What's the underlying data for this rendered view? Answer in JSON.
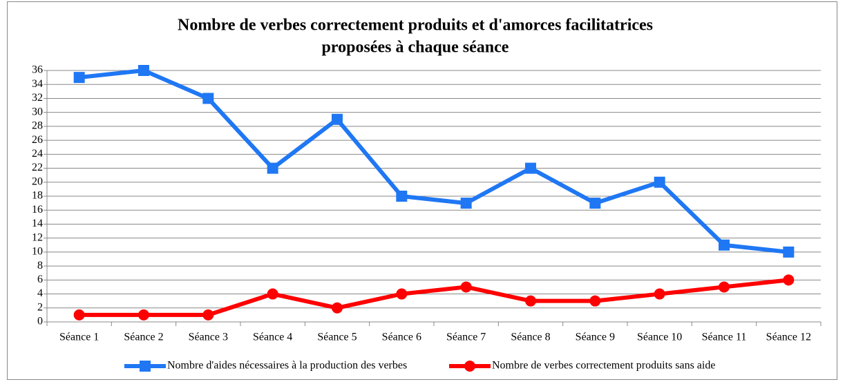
{
  "chart_data": {
    "type": "line",
    "title": [
      "Nombre de verbes correctement produits et d'amorces facilitatrices",
      "proposées à chaque séance"
    ],
    "categories": [
      "Séance 1",
      "Séance 2",
      "Séance 3",
      "Séance 4",
      "Séance 5",
      "Séance 6",
      "Séance 7",
      "Séance 8",
      "Séance 9",
      "Séance 10",
      "Séance 11",
      "Séance 12"
    ],
    "series": [
      {
        "name": "Nombre d'aides nécessaires à la production des verbes",
        "color": "#1f77f4",
        "marker": "square",
        "values": [
          35,
          36,
          32,
          22,
          29,
          18,
          17,
          22,
          17,
          20,
          11,
          10
        ]
      },
      {
        "name": "Nombre de verbes correctement produits sans aide",
        "color": "#ff0000",
        "marker": "circle",
        "values": [
          1,
          1,
          1,
          4,
          2,
          4,
          5,
          3,
          3,
          4,
          5,
          6
        ]
      }
    ],
    "ylim": [
      0,
      36
    ],
    "yticks": [
      0,
      2,
      4,
      6,
      8,
      10,
      12,
      14,
      16,
      18,
      20,
      22,
      24,
      26,
      28,
      30,
      32,
      34,
      36
    ],
    "grid": true,
    "legend": "bottom"
  }
}
